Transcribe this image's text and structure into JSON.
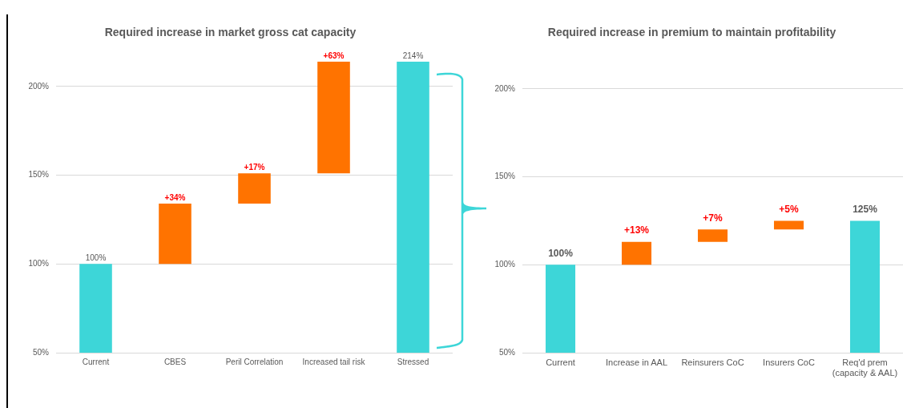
{
  "chart_data": [
    {
      "type": "bar",
      "title": "Required increase in market gross cat capacity",
      "categories": [
        "Current",
        "CBES",
        "Peril Correlation",
        "Increased tail risk",
        "Stressed"
      ],
      "values": [
        100,
        34,
        17,
        63,
        214
      ],
      "base": [
        null,
        100,
        134,
        151,
        null
      ],
      "colors": [
        "#3dd6d8",
        "#ff7300",
        "#ff7300",
        "#ff7300",
        "#3dd6d8"
      ],
      "value_labels": [
        "100%",
        "+34%",
        "+17%",
        "+63%",
        "214%"
      ],
      "ylim": [
        50,
        214
      ],
      "yticks": [
        {
          "value": 50,
          "label": "50%"
        },
        {
          "value": 100,
          "label": "100%"
        },
        {
          "value": 150,
          "label": "150%"
        },
        {
          "value": 200,
          "label": "200%"
        }
      ],
      "grid": "y"
    },
    {
      "type": "bar",
      "title": "Required increase in premium to maintain profitability",
      "categories": [
        "Current",
        "Increase in AAL",
        "Reinsurers CoC",
        "Insurers CoC",
        "Req'd prem (capacity & AAL)"
      ],
      "values": [
        100,
        13,
        7,
        5,
        125
      ],
      "base": [
        null,
        100,
        113,
        120,
        null
      ],
      "colors": [
        "#3dd6d8",
        "#ff7300",
        "#ff7300",
        "#ff7300",
        "#3dd6d8"
      ],
      "value_labels": [
        "100%",
        "+13%",
        "+7%",
        "+5%",
        "125%"
      ],
      "ylim": [
        50,
        200
      ],
      "yticks": [
        {
          "value": 50,
          "label": "50%"
        },
        {
          "value": 100,
          "label": "100%"
        },
        {
          "value": 150,
          "label": "150%"
        },
        {
          "value": 200,
          "label": "200%"
        }
      ],
      "grid": "y"
    }
  ]
}
